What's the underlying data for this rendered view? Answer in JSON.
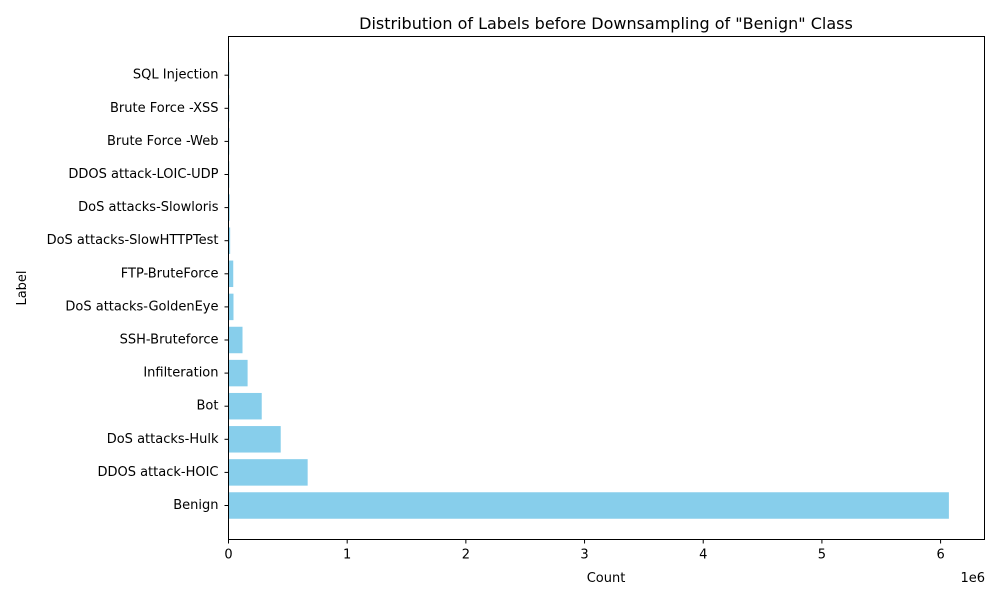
{
  "chart_data": {
    "type": "bar",
    "orientation": "horizontal",
    "title": "Distribution of Labels before Downsampling of \"Benign\" Class",
    "xlabel": "Count",
    "ylabel": "Label",
    "x_scale_label": "1e6",
    "xlim": [
      0,
      6370000
    ],
    "xticks": [
      0,
      1,
      2,
      3,
      4,
      5,
      6
    ],
    "grid": false,
    "bar_color": "#87ceeb",
    "categories": [
      "Benign",
      "DDOS attack-HOIC",
      "DoS attacks-Hulk",
      "Bot",
      "Infilteration",
      "SSH-Bruteforce",
      "DoS attacks-GoldenEye",
      "FTP-BruteForce",
      "DoS attacks-SlowHTTPTest",
      "DoS attacks-Slowloris",
      "DDOS attack-LOIC-UDP",
      "Brute Force -Web",
      "Brute Force -XSS",
      "SQL Injection"
    ],
    "values": [
      6070000,
      667000,
      440000,
      280000,
      161000,
      118000,
      42000,
      40000,
      14000,
      10000,
      1700,
      600,
      230,
      90
    ]
  }
}
